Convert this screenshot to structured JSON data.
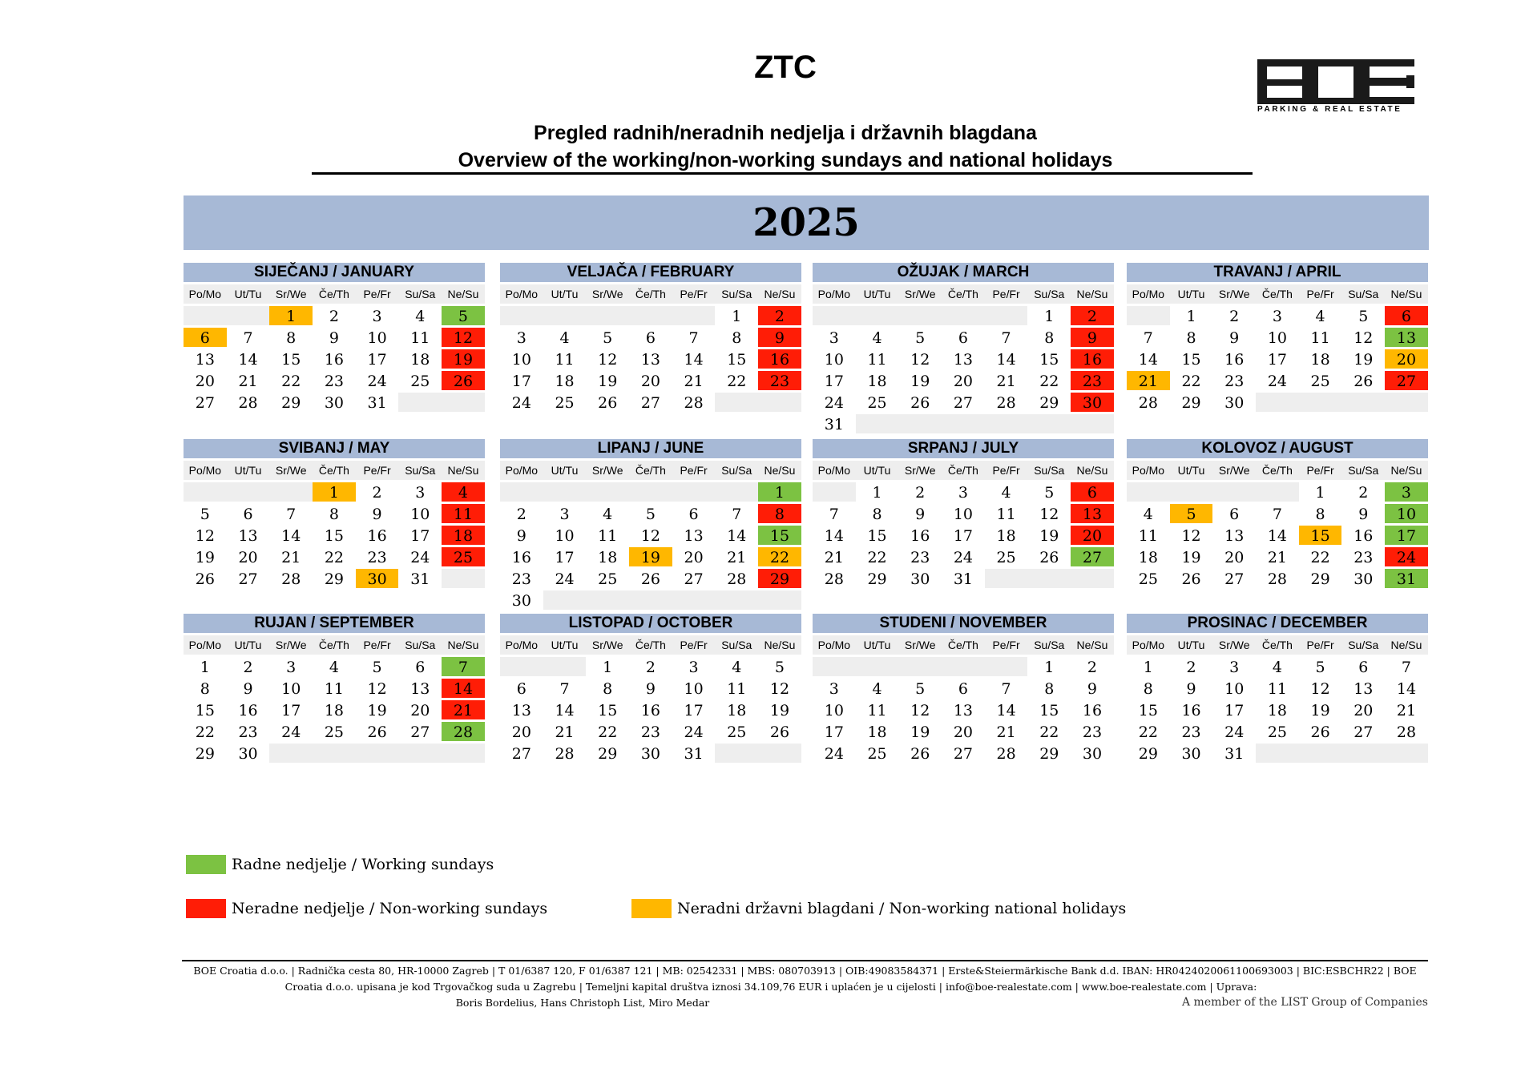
{
  "header": {
    "title": "ZTC",
    "subtitle_hr": "Pregled radnih/neradnih nedjelja i državnih blagdana",
    "subtitle_en": "Overview of the working/non-working sundays and national holidays",
    "year": "2025",
    "logo_text": "BOE",
    "logo_tagline": "PARKING & REAL ESTATE"
  },
  "weekdays": [
    "Po/Mo",
    "Ut/Tu",
    "Sr/We",
    "Če/Th",
    "Pe/Fr",
    "Su/Sa",
    "Ne/Su"
  ],
  "colors": {
    "working_sunday": "#7cc242",
    "non_working_sunday": "#ff1d06",
    "holiday": "#ffb700",
    "header_bg": "#a7b9d6",
    "empty": "#eeeeee"
  },
  "months": [
    {
      "name": "SIJEČANJ / JANUARY",
      "start": 2,
      "days": 31,
      "rows": 5,
      "marks": {
        "1": "y",
        "5": "g",
        "6": "y",
        "12": "r",
        "19": "r",
        "26": "r"
      }
    },
    {
      "name": "VELJAČA / FEBRUARY",
      "start": 5,
      "days": 28,
      "rows": 5,
      "marks": {
        "2": "r",
        "9": "r",
        "16": "r",
        "23": "r"
      }
    },
    {
      "name": "OŽUJAK / MARCH",
      "start": 5,
      "days": 31,
      "rows": 6,
      "marks": {
        "2": "r",
        "9": "r",
        "16": "r",
        "23": "r",
        "30": "r"
      }
    },
    {
      "name": "TRAVANJ / APRIL",
      "start": 1,
      "days": 30,
      "rows": 5,
      "marks": {
        "6": "r",
        "13": "g",
        "20": "y",
        "21": "y",
        "27": "r"
      }
    },
    {
      "name": "SVIBANJ / MAY",
      "start": 3,
      "days": 31,
      "rows": 5,
      "marks": {
        "1": "y",
        "4": "r",
        "11": "r",
        "18": "r",
        "25": "r",
        "30": "y"
      }
    },
    {
      "name": "LIPANJ / JUNE",
      "start": 6,
      "days": 30,
      "rows": 6,
      "marks": {
        "1": "g",
        "8": "r",
        "15": "g",
        "19": "y",
        "22": "y",
        "29": "r"
      }
    },
    {
      "name": "SRPANJ / JULY",
      "start": 1,
      "days": 31,
      "rows": 5,
      "marks": {
        "6": "r",
        "13": "r",
        "20": "r",
        "27": "g"
      }
    },
    {
      "name": "KOLOVOZ / AUGUST",
      "start": 4,
      "days": 31,
      "rows": 5,
      "marks": {
        "3": "g",
        "5": "y",
        "10": "g",
        "15": "y",
        "17": "g",
        "24": "r",
        "31": "g"
      }
    },
    {
      "name": "RUJAN / SEPTEMBER",
      "start": 0,
      "days": 30,
      "rows": 5,
      "marks": {
        "7": "g",
        "14": "r",
        "21": "r",
        "28": "g"
      }
    },
    {
      "name": "LISTOPAD / OCTOBER",
      "start": 2,
      "days": 31,
      "rows": 5,
      "marks": {}
    },
    {
      "name": "STUDENI / NOVEMBER",
      "start": 5,
      "days": 30,
      "rows": 5,
      "marks": {}
    },
    {
      "name": "PROSINAC / DECEMBER",
      "start": 0,
      "days": 31,
      "rows": 5,
      "marks": {}
    }
  ],
  "legend": {
    "working": "Radne nedjelje / Working sundays",
    "non_working": "Neradne nedjelje / Non-working sundays",
    "holidays": "Neradni državni blagdani / Non-working national holidays"
  },
  "footer": {
    "line1": "BOE Croatia d.o.o. | Radnička cesta 80, HR-10000 Zagreb | T 01/6387 120, F 01/6387 121 | MB: 02542331 | MBS: 080703913 | OIB:49083584371 | Erste&Steiermärkische Bank d.d. IBAN: HR0424020061100693003 | BIC:ESBCHR22 | BOE",
    "line2": "Croatia d.o.o. upisana je kod Trgovačkog suda u Zagrebu | Temeljni kapital društva iznosi 34.109,76 EUR i uplaćen je u cijelosti | info@boe-realestate.com | www.boe-realestate.com | Uprava:",
    "line3": "Boris Bordelius, Hans Christoph List, Miro Medar",
    "member": "A member of the LIST Group of Companies"
  }
}
